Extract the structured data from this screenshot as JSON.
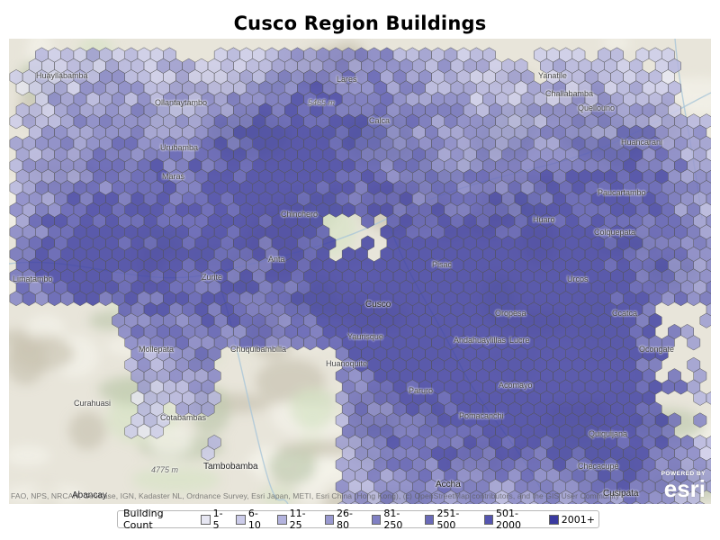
{
  "title": "Cusco Region Buildings",
  "map": {
    "basemap": "topographic terrain",
    "hex_fill_color": "#4040a8",
    "hex_stroke_color": "#555555",
    "place_labels": [
      "Huayllabamba",
      "Ollantaytambo",
      "Urubamba",
      "Calca",
      "Pisac",
      "Cusco",
      "Huaro",
      "Urcos",
      "Paucartambo",
      "Andahuaylillas",
      "Oropesa",
      "Lucre",
      "Yaurisque",
      "Paruro",
      "Accha",
      "Pomacanchi",
      "Acomayo",
      "Huanoquite",
      "Anta",
      "Limatambo",
      "Zurite",
      "Chinchero",
      "Maras",
      "Lares",
      "Yanatile",
      "Quellouno",
      "Challabamba",
      "Colquepata",
      "Huancarani",
      "Ccatca",
      "Ocongate",
      "Quiquijana",
      "Cusipata",
      "Checacupe",
      "Tambobamba",
      "Cotabambas",
      "Chuquibambilla",
      "Mollepata",
      "Curahuasi",
      "Abancay"
    ],
    "peak_labels": [
      "5465 m",
      "4775 m"
    ],
    "attribution": "FAO, NPS, NRCAN, GeoBase, IGN, Kadaster NL, Ordnance Survey, Esri Japan, METI, Esri China (Hong Kong), (c) OpenStreetMap contributors, and the GIS User Community",
    "esri_logo": {
      "top": "POWERED BY",
      "word": "esri"
    }
  },
  "legend": {
    "title": "Building Count",
    "items": [
      {
        "label": "1-5",
        "color": "#e6e6f2"
      },
      {
        "label": "6-10",
        "color": "#ccccea"
      },
      {
        "label": "11-25",
        "color": "#b3b3de"
      },
      {
        "label": "26-80",
        "color": "#9999d0"
      },
      {
        "label": "81-250",
        "color": "#8080c4"
      },
      {
        "label": "251-500",
        "color": "#6a6ab8"
      },
      {
        "label": "501-2000",
        "color": "#5555b0"
      },
      {
        "label": "2001+",
        "color": "#3a3aa0"
      }
    ]
  }
}
